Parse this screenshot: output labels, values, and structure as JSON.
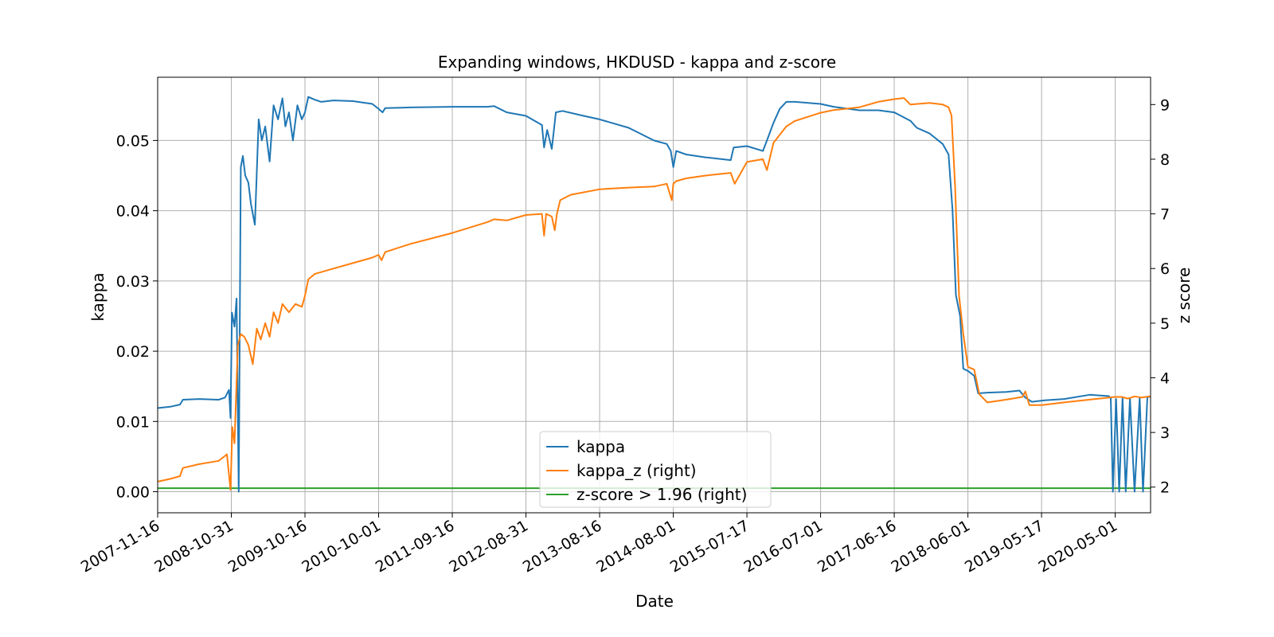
{
  "chart_data": {
    "type": "line",
    "title": "Expanding windows, HKDUSD - kappa and z-score",
    "xlabel": "Date",
    "ylabel": "kappa",
    "y2label": "z score",
    "xlim": [
      "2007-11-16",
      "2020-10-16"
    ],
    "ylim": [
      -0.003,
      0.059
    ],
    "y2lim": [
      1.53,
      9.5
    ],
    "x_ticks": [
      "2007-11-16",
      "2008-10-31",
      "2009-10-16",
      "2010-10-01",
      "2011-09-16",
      "2012-08-31",
      "2013-08-16",
      "2014-08-01",
      "2015-07-17",
      "2016-07-01",
      "2017-06-16",
      "2018-06-01",
      "2019-05-17",
      "2020-05-01"
    ],
    "y_ticks": [
      "0.00",
      "0.01",
      "0.02",
      "0.03",
      "0.04",
      "0.05"
    ],
    "y2_ticks": [
      "2",
      "3",
      "4",
      "5",
      "6",
      "7",
      "8",
      "9"
    ],
    "grid": true,
    "legend_position": "lower center",
    "colors": {
      "kappa": "#1f77b4",
      "kappa_z": "#ff7f0e",
      "threshold": "#2ca02c"
    },
    "series": [
      {
        "name": "kappa",
        "axis": "left",
        "x": [
          "2007-11-16",
          "2008-01-15",
          "2008-03-01",
          "2008-03-15",
          "2008-06-01",
          "2008-09-01",
          "2008-10-01",
          "2008-10-20",
          "2008-10-27",
          "2008-11-03",
          "2008-11-15",
          "2008-11-25",
          "2008-12-05",
          "2008-12-15",
          "2008-12-25",
          "2009-01-05",
          "2009-01-20",
          "2009-02-01",
          "2009-02-20",
          "2009-03-10",
          "2009-03-25",
          "2009-04-10",
          "2009-05-01",
          "2009-05-20",
          "2009-06-10",
          "2009-07-01",
          "2009-07-15",
          "2009-08-01",
          "2009-08-20",
          "2009-09-10",
          "2009-10-01",
          "2009-10-16",
          "2009-11-01",
          "2009-12-01",
          "2010-01-01",
          "2010-03-01",
          "2010-06-01",
          "2010-09-01",
          "2010-10-01",
          "2010-10-20",
          "2010-11-01",
          "2011-03-01",
          "2011-09-16",
          "2012-03-01",
          "2012-04-01",
          "2012-06-01",
          "2012-08-31",
          "2012-11-15",
          "2012-11-25",
          "2012-12-10",
          "2013-01-01",
          "2013-01-20",
          "2013-02-20",
          "2013-06-01",
          "2013-08-16",
          "2014-01-01",
          "2014-05-01",
          "2014-07-01",
          "2014-07-20",
          "2014-08-01",
          "2014-08-15",
          "2014-10-01",
          "2015-01-01",
          "2015-05-01",
          "2015-05-15",
          "2015-07-17",
          "2015-10-01",
          "2015-10-20",
          "2015-11-20",
          "2015-12-20",
          "2016-01-20",
          "2016-03-01",
          "2016-07-01",
          "2016-09-01",
          "2017-01-01",
          "2017-04-01",
          "2017-06-16",
          "2017-09-01",
          "2017-10-01",
          "2017-12-01",
          "2018-02-01",
          "2018-03-01",
          "2018-03-20",
          "2018-04-05",
          "2018-04-25",
          "2018-05-10",
          "2018-06-01",
          "2018-07-01",
          "2018-07-20",
          "2018-09-01",
          "2018-12-01",
          "2019-02-01",
          "2019-03-01",
          "2019-04-01",
          "2019-06-01",
          "2019-09-01",
          "2020-01-01",
          "2020-04-01",
          "2020-04-10",
          "2020-04-20",
          "2020-05-05",
          "2020-05-20",
          "2020-06-05",
          "2020-06-20",
          "2020-07-10",
          "2020-08-01",
          "2020-08-25",
          "2020-09-10",
          "2020-10-01",
          "2020-10-16"
        ],
        "values": [
          0.0119,
          0.0121,
          0.0124,
          0.0131,
          0.0132,
          0.0131,
          0.0134,
          0.0145,
          0.0105,
          0.0255,
          0.0235,
          0.0275,
          0.0,
          0.0462,
          0.0478,
          0.045,
          0.044,
          0.041,
          0.038,
          0.053,
          0.05,
          0.052,
          0.047,
          0.055,
          0.053,
          0.056,
          0.052,
          0.054,
          0.05,
          0.055,
          0.053,
          0.054,
          0.0562,
          0.0558,
          0.0555,
          0.0557,
          0.0556,
          0.0552,
          0.0545,
          0.054,
          0.0546,
          0.0547,
          0.0548,
          0.0548,
          0.0549,
          0.054,
          0.0535,
          0.0522,
          0.049,
          0.0515,
          0.0488,
          0.054,
          0.0542,
          0.0535,
          0.053,
          0.0518,
          0.05,
          0.0495,
          0.0485,
          0.0462,
          0.0485,
          0.048,
          0.0476,
          0.0472,
          0.049,
          0.0492,
          0.0485,
          0.05,
          0.0525,
          0.0545,
          0.0555,
          0.0555,
          0.0552,
          0.0548,
          0.0543,
          0.0543,
          0.054,
          0.0528,
          0.0518,
          0.051,
          0.0495,
          0.048,
          0.04,
          0.028,
          0.025,
          0.0175,
          0.0172,
          0.0165,
          0.014,
          0.0141,
          0.0142,
          0.0144,
          0.0134,
          0.0128,
          0.013,
          0.0132,
          0.0138,
          0.0136,
          0.0133,
          0.0,
          0.0132,
          0.0,
          0.0134,
          0.0,
          0.0133,
          0.0,
          0.0134,
          0.0,
          0.0135,
          0.0135
        ]
      },
      {
        "name": "kappa_z (right)",
        "axis": "right",
        "x": [
          "2007-11-16",
          "2008-01-15",
          "2008-03-01",
          "2008-03-15",
          "2008-06-01",
          "2008-09-01",
          "2008-10-10",
          "2008-10-27",
          "2008-11-05",
          "2008-11-15",
          "2008-12-01",
          "2008-12-15",
          "2009-01-01",
          "2009-01-20",
          "2009-02-10",
          "2009-03-01",
          "2009-03-20",
          "2009-04-10",
          "2009-05-01",
          "2009-05-20",
          "2009-06-10",
          "2009-07-01",
          "2009-08-01",
          "2009-09-01",
          "2009-10-01",
          "2009-10-16",
          "2009-11-01",
          "2009-12-01",
          "2010-03-01",
          "2010-06-01",
          "2010-09-01",
          "2010-10-01",
          "2010-10-15",
          "2010-11-01",
          "2011-03-01",
          "2011-09-16",
          "2012-03-01",
          "2012-04-01",
          "2012-06-01",
          "2012-08-31",
          "2012-11-15",
          "2012-11-25",
          "2012-12-05",
          "2013-01-01",
          "2013-01-15",
          "2013-01-25",
          "2013-02-10",
          "2013-04-01",
          "2013-08-16",
          "2014-01-01",
          "2014-05-01",
          "2014-07-01",
          "2014-07-25",
          "2014-08-01",
          "2014-08-15",
          "2014-10-01",
          "2015-01-01",
          "2015-05-01",
          "2015-05-20",
          "2015-07-17",
          "2015-10-01",
          "2015-10-20",
          "2015-11-20",
          "2016-01-20",
          "2016-03-01",
          "2016-07-01",
          "2016-09-01",
          "2017-01-01",
          "2017-04-01",
          "2017-06-16",
          "2017-08-01",
          "2017-09-01",
          "2017-12-01",
          "2018-02-01",
          "2018-03-01",
          "2018-03-15",
          "2018-04-01",
          "2018-04-20",
          "2018-05-10",
          "2018-06-01",
          "2018-07-01",
          "2018-07-25",
          "2018-09-01",
          "2018-12-01",
          "2019-02-15",
          "2019-03-01",
          "2019-03-20",
          "2019-05-17",
          "2019-09-01",
          "2020-01-01",
          "2020-05-01",
          "2020-06-01",
          "2020-07-01",
          "2020-08-01",
          "2020-09-01",
          "2020-10-16"
        ],
        "values": [
          2.1,
          2.15,
          2.2,
          2.35,
          2.42,
          2.48,
          2.6,
          1.95,
          3.1,
          2.8,
          4.6,
          4.8,
          4.75,
          4.6,
          4.25,
          4.9,
          4.7,
          5.0,
          4.75,
          5.2,
          5.0,
          5.35,
          5.2,
          5.35,
          5.3,
          5.5,
          5.8,
          5.9,
          6.0,
          6.1,
          6.2,
          6.25,
          6.15,
          6.3,
          6.45,
          6.65,
          6.85,
          6.9,
          6.88,
          6.98,
          7.0,
          6.6,
          7.0,
          6.95,
          6.7,
          7.0,
          7.25,
          7.35,
          7.45,
          7.48,
          7.5,
          7.55,
          7.25,
          7.55,
          7.6,
          7.65,
          7.7,
          7.75,
          7.55,
          7.95,
          8.0,
          7.8,
          8.3,
          8.6,
          8.7,
          8.85,
          8.9,
          8.95,
          9.05,
          9.1,
          9.12,
          9.0,
          9.03,
          9.0,
          8.95,
          8.8,
          7.5,
          5.5,
          4.8,
          4.2,
          4.15,
          3.7,
          3.55,
          3.6,
          3.65,
          3.75,
          3.5,
          3.5,
          3.55,
          3.6,
          3.65,
          3.65,
          3.62,
          3.66,
          3.64,
          3.66
        ]
      },
      {
        "name": "z-score > 1.96 (right)",
        "axis": "left",
        "x": [
          "2007-11-16",
          "2020-10-16"
        ],
        "values": [
          0.0005,
          0.0005
        ]
      }
    ]
  }
}
